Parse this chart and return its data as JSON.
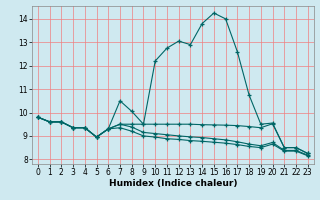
{
  "xlabel": "Humidex (Indice chaleur)",
  "background_color": "#cfe9f0",
  "grid_color": "#f08080",
  "line_color": "#006666",
  "xlim": [
    -0.5,
    23.5
  ],
  "ylim": [
    7.8,
    14.55
  ],
  "yticks": [
    8,
    9,
    10,
    11,
    12,
    13,
    14
  ],
  "xticks": [
    0,
    1,
    2,
    3,
    4,
    5,
    6,
    7,
    8,
    9,
    10,
    11,
    12,
    13,
    14,
    15,
    16,
    17,
    18,
    19,
    20,
    21,
    22,
    23
  ],
  "main_y": [
    9.8,
    9.6,
    9.6,
    9.35,
    9.35,
    8.95,
    9.3,
    10.5,
    10.05,
    9.5,
    12.2,
    12.75,
    13.05,
    12.9,
    13.8,
    14.25,
    14.0,
    12.6,
    10.75,
    9.5,
    9.55,
    8.5,
    8.5,
    8.25
  ],
  "line1_y": [
    9.8,
    9.6,
    9.6,
    9.35,
    9.35,
    8.95,
    9.3,
    9.5,
    9.5,
    9.5,
    9.5,
    9.5,
    9.5,
    9.5,
    9.48,
    9.47,
    9.46,
    9.44,
    9.4,
    9.35,
    9.52,
    8.5,
    8.5,
    8.25
  ],
  "line2_y": [
    9.8,
    9.6,
    9.6,
    9.35,
    9.35,
    8.95,
    9.3,
    9.35,
    9.2,
    9.0,
    8.95,
    8.88,
    8.85,
    8.8,
    8.77,
    8.73,
    8.69,
    8.63,
    8.55,
    8.5,
    8.65,
    8.35,
    8.35,
    8.15
  ],
  "line3_y": [
    9.8,
    9.6,
    9.6,
    9.35,
    9.35,
    8.95,
    9.3,
    9.5,
    9.38,
    9.15,
    9.1,
    9.05,
    9.0,
    8.96,
    8.93,
    8.88,
    8.83,
    8.75,
    8.65,
    8.58,
    8.72,
    8.38,
    8.38,
    8.18
  ]
}
